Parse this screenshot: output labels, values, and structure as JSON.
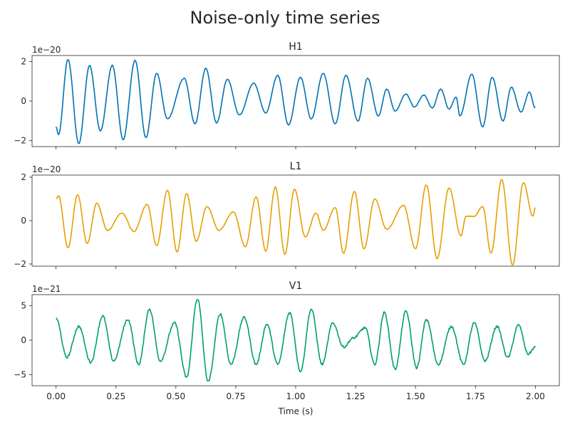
{
  "title": "Noise-only time series",
  "chart_data": {
    "type": "line",
    "xlabel": "Time (s)",
    "xlim": [
      -0.1,
      2.1
    ],
    "xticks": [
      0.0,
      0.25,
      0.5,
      0.75,
      1.0,
      1.25,
      1.5,
      1.75,
      2.0
    ],
    "xtick_labels": [
      "0.00",
      "0.25",
      "0.50",
      "0.75",
      "1.00",
      "1.25",
      "1.50",
      "1.75",
      "2.00"
    ],
    "shared_x": true,
    "grid": false,
    "panels": [
      {
        "name": "H1",
        "color": "#0072b2",
        "offset_label": "1e−20",
        "ylim": [
          -2.3,
          2.3
        ],
        "yticks": [
          -2,
          0,
          2
        ],
        "ytick_labels": [
          "−2",
          "0",
          "2"
        ],
        "extrema": [
          [
            0.0,
            -1.3
          ],
          [
            0.01,
            -1.7
          ],
          [
            0.05,
            2.1
          ],
          [
            0.095,
            -2.15
          ],
          [
            0.14,
            1.8
          ],
          [
            0.185,
            -1.5
          ],
          [
            0.235,
            1.8
          ],
          [
            0.28,
            -1.95
          ],
          [
            0.33,
            2.05
          ],
          [
            0.375,
            -1.85
          ],
          [
            0.42,
            1.4
          ],
          [
            0.465,
            -0.9
          ],
          [
            0.535,
            1.15
          ],
          [
            0.58,
            -1.15
          ],
          [
            0.625,
            1.65
          ],
          [
            0.67,
            -1.1
          ],
          [
            0.715,
            1.1
          ],
          [
            0.765,
            -0.7
          ],
          [
            0.825,
            0.9
          ],
          [
            0.875,
            -0.6
          ],
          [
            0.925,
            1.3
          ],
          [
            0.97,
            -1.2
          ],
          [
            1.02,
            1.2
          ],
          [
            1.065,
            -0.9
          ],
          [
            1.115,
            1.4
          ],
          [
            1.165,
            -1.15
          ],
          [
            1.21,
            1.3
          ],
          [
            1.26,
            -1.0
          ],
          [
            1.3,
            1.15
          ],
          [
            1.345,
            -0.75
          ],
          [
            1.38,
            0.6
          ],
          [
            1.415,
            -0.5
          ],
          [
            1.46,
            0.35
          ],
          [
            1.495,
            -0.3
          ],
          [
            1.535,
            0.3
          ],
          [
            1.57,
            -0.35
          ],
          [
            1.605,
            0.6
          ],
          [
            1.64,
            -0.4
          ],
          [
            1.67,
            0.2
          ],
          [
            1.685,
            -0.75
          ],
          [
            1.735,
            1.35
          ],
          [
            1.78,
            -1.3
          ],
          [
            1.82,
            1.2
          ],
          [
            1.865,
            -1.0
          ],
          [
            1.9,
            0.7
          ],
          [
            1.94,
            -0.55
          ],
          [
            1.975,
            0.45
          ],
          [
            2.0,
            -0.35
          ]
        ]
      },
      {
        "name": "L1",
        "color": "#e69f00",
        "offset_label": "1e−20",
        "ylim": [
          -2.1,
          2.1
        ],
        "yticks": [
          -2,
          0,
          2
        ],
        "ytick_labels": [
          "−2",
          "0",
          "2"
        ],
        "extrema": [
          [
            0.0,
            1.0
          ],
          [
            0.01,
            1.15
          ],
          [
            0.05,
            -1.25
          ],
          [
            0.09,
            1.2
          ],
          [
            0.13,
            -1.05
          ],
          [
            0.17,
            0.8
          ],
          [
            0.215,
            -0.45
          ],
          [
            0.275,
            0.35
          ],
          [
            0.325,
            -0.5
          ],
          [
            0.38,
            0.75
          ],
          [
            0.42,
            -1.15
          ],
          [
            0.465,
            1.4
          ],
          [
            0.505,
            -1.45
          ],
          [
            0.545,
            1.25
          ],
          [
            0.585,
            -0.95
          ],
          [
            0.63,
            0.65
          ],
          [
            0.68,
            -0.45
          ],
          [
            0.74,
            0.4
          ],
          [
            0.79,
            -1.2
          ],
          [
            0.835,
            1.1
          ],
          [
            0.875,
            -1.4
          ],
          [
            0.915,
            1.55
          ],
          [
            0.955,
            -1.55
          ],
          [
            0.995,
            1.45
          ],
          [
            1.04,
            -0.75
          ],
          [
            1.085,
            0.35
          ],
          [
            1.115,
            -0.45
          ],
          [
            1.165,
            0.6
          ],
          [
            1.2,
            -1.5
          ],
          [
            1.245,
            1.35
          ],
          [
            1.285,
            -1.3
          ],
          [
            1.33,
            1.0
          ],
          [
            1.38,
            -0.4
          ],
          [
            1.45,
            0.7
          ],
          [
            1.5,
            -1.3
          ],
          [
            1.545,
            1.65
          ],
          [
            1.59,
            -1.75
          ],
          [
            1.64,
            1.5
          ],
          [
            1.69,
            -0.7
          ],
          [
            1.71,
            0.2
          ],
          [
            1.745,
            0.2
          ],
          [
            1.78,
            0.65
          ],
          [
            1.815,
            -1.5
          ],
          [
            1.86,
            1.9
          ],
          [
            1.905,
            -2.05
          ],
          [
            1.95,
            1.75
          ],
          [
            1.99,
            0.2
          ],
          [
            2.0,
            0.6
          ]
        ]
      },
      {
        "name": "V1",
        "color": "#009e73",
        "offset_label": "1e−21",
        "ylim": [
          -6.6,
          6.6
        ],
        "yticks": [
          -5,
          0,
          5
        ],
        "ytick_labels": [
          "−5",
          "0",
          "5"
        ],
        "extrema": [
          [
            0.0,
            3.2
          ],
          [
            0.045,
            -2.5
          ],
          [
            0.095,
            2.0
          ],
          [
            0.145,
            -3.2
          ],
          [
            0.195,
            3.5
          ],
          [
            0.24,
            -3.0
          ],
          [
            0.3,
            3.0
          ],
          [
            0.345,
            -3.5
          ],
          [
            0.39,
            4.5
          ],
          [
            0.435,
            -3.0
          ],
          [
            0.495,
            2.5
          ],
          [
            0.545,
            -5.4
          ],
          [
            0.59,
            6.0
          ],
          [
            0.635,
            -6.0
          ],
          [
            0.685,
            3.8
          ],
          [
            0.73,
            -3.5
          ],
          [
            0.785,
            3.3
          ],
          [
            0.835,
            -3.5
          ],
          [
            0.88,
            2.3
          ],
          [
            0.925,
            -3.5
          ],
          [
            0.975,
            4.0
          ],
          [
            1.02,
            -4.5
          ],
          [
            1.065,
            4.5
          ],
          [
            1.11,
            -3.5
          ],
          [
            1.155,
            2.5
          ],
          [
            1.2,
            -1.0
          ],
          [
            1.24,
            0.3
          ],
          [
            1.29,
            1.8
          ],
          [
            1.33,
            -3.5
          ],
          [
            1.37,
            4.0
          ],
          [
            1.415,
            -4.2
          ],
          [
            1.46,
            4.2
          ],
          [
            1.505,
            -4.0
          ],
          [
            1.545,
            3.0
          ],
          [
            1.595,
            -3.5
          ],
          [
            1.65,
            2.0
          ],
          [
            1.7,
            -3.5
          ],
          [
            1.745,
            2.5
          ],
          [
            1.79,
            -3.0
          ],
          [
            1.84,
            2.0
          ],
          [
            1.885,
            -2.5
          ],
          [
            1.93,
            2.2
          ],
          [
            1.97,
            -2.0
          ],
          [
            2.0,
            -1.0
          ]
        ]
      }
    ]
  }
}
